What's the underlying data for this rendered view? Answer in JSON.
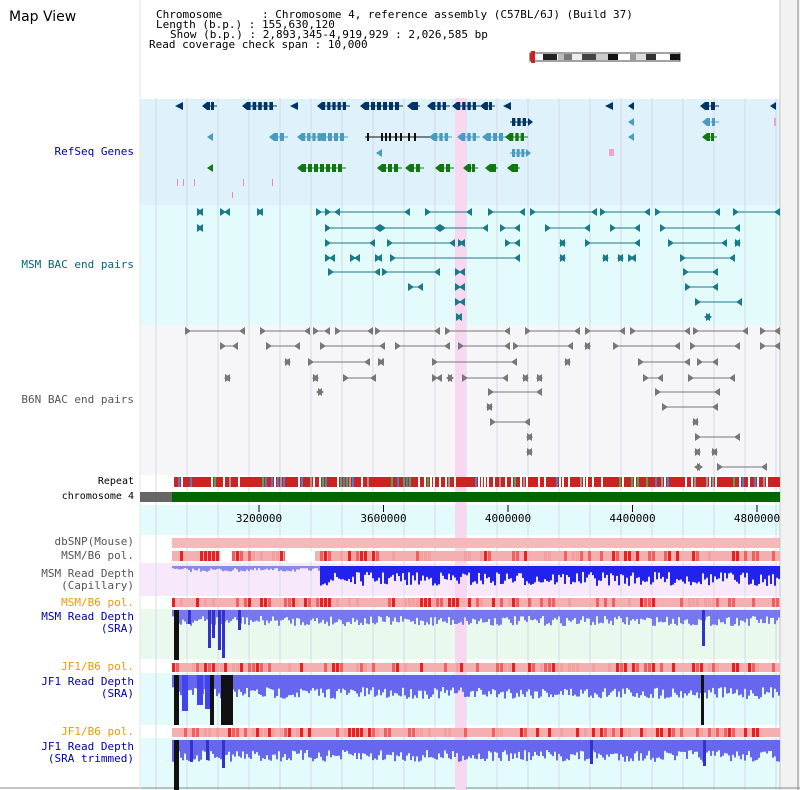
{
  "title": "Map View",
  "info": {
    "chromosome_label": "Chromosome",
    "chromosome_value": "Chromosome 4, reference assembly (C57BL/6J) (Build 37)",
    "length_label": "Length (b.p.)",
    "length_value": "155,630,120",
    "show_label": "Show (b.p.)",
    "show_value": "2,893,345-4,919,929 : 2,026,585 bp",
    "span_label": "Read coverage check span",
    "span_value": "10,000"
  },
  "tracks": {
    "refseq": "RefSeq Genes",
    "msm_bac": "MSM BAC end pairs",
    "b6n_bac": "B6N BAC end pairs",
    "repeat": "Repeat",
    "chromosome": "chromosome 4",
    "dbsnp": "dbSNP(Mouse)",
    "msm_b6_pol_1": "MSM/B6 pol.",
    "msm_depth_cap": "MSM Read Depth\n(Capillary)",
    "msm_b6_pol_2": "MSM/B6 pol.",
    "msm_depth_sra": "MSM Read Depth\n(SRA)",
    "jf1_b6_pol_1": "JF1/B6 pol.",
    "jf1_depth_sra": "JF1 Read Depth\n(SRA)",
    "jf1_b6_pol_2": "JF1/B6 pol.",
    "jf1_depth_trim": "JF1 Read Depth\n(SRA trimmed)"
  },
  "axis": {
    "ticks": [
      {
        "value": 3200000,
        "label": "3200000"
      },
      {
        "value": 3600000,
        "label": "3600000"
      },
      {
        "value": 4000000,
        "label": "4000000"
      },
      {
        "value": 4400000,
        "label": "4400000"
      },
      {
        "value": 4800000,
        "label": "4800000"
      }
    ],
    "domain": [
      2893345,
      4919929
    ]
  },
  "colors": {
    "refseq_bg": "#dff1fb",
    "msm_bg": "#e4fbfb",
    "b6n_bg": "#f6f6f8",
    "highlight": "#f8d8f0",
    "gene_navy": "#003366",
    "gene_teal": "#4a9bbf",
    "gene_green": "#117711",
    "msm_pair": "#1a7a8a",
    "b6n_pair": "#777777",
    "chrom_green": "#006600",
    "depth_blue": "#3333ee"
  }
}
